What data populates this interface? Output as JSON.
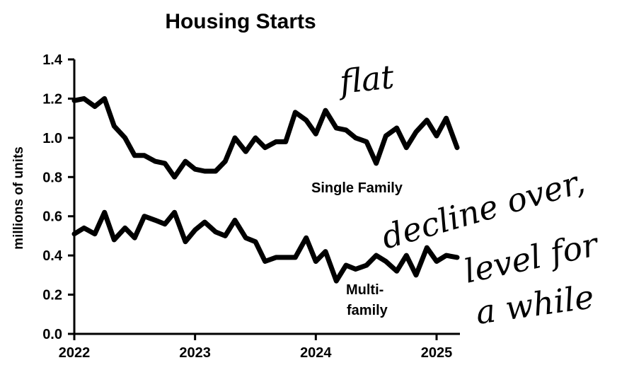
{
  "chart_data": {
    "type": "line",
    "title": "Housing Starts",
    "ylabel": "millions of units",
    "xlabel": "",
    "xlim": [
      2022,
      2025.17
    ],
    "ylim": [
      0,
      1.4
    ],
    "yticks": [
      "0.0",
      "0.2",
      "0.4",
      "0.6",
      "0.8",
      "1.0",
      "1.2",
      "1.4"
    ],
    "xticks": [
      "2022",
      "2023",
      "2024",
      "2025"
    ],
    "grid": false,
    "series": [
      {
        "name": "Single Family",
        "x": [
          2022.0,
          2022.08,
          2022.17,
          2022.25,
          2022.33,
          2022.42,
          2022.5,
          2022.58,
          2022.67,
          2022.75,
          2022.83,
          2022.92,
          2023.0,
          2023.08,
          2023.17,
          2023.25,
          2023.33,
          2023.42,
          2023.5,
          2023.58,
          2023.67,
          2023.75,
          2023.83,
          2023.92,
          2024.0,
          2024.08,
          2024.17,
          2024.25,
          2024.33,
          2024.42,
          2024.5,
          2024.58,
          2024.67,
          2024.75,
          2024.83,
          2024.92,
          2025.0,
          2025.08,
          2025.17
        ],
        "values": [
          1.19,
          1.2,
          1.16,
          1.2,
          1.06,
          1.0,
          0.91,
          0.91,
          0.88,
          0.87,
          0.8,
          0.88,
          0.84,
          0.83,
          0.83,
          0.88,
          1.0,
          0.93,
          1.0,
          0.95,
          0.98,
          0.98,
          1.13,
          1.09,
          1.02,
          1.14,
          1.05,
          1.04,
          1.0,
          0.98,
          0.87,
          1.01,
          1.05,
          0.95,
          1.03,
          1.09,
          1.01,
          1.1,
          0.95
        ]
      },
      {
        "name": "Multi-family",
        "x": [
          2022.0,
          2022.08,
          2022.17,
          2022.25,
          2022.33,
          2022.42,
          2022.5,
          2022.58,
          2022.67,
          2022.75,
          2022.83,
          2022.92,
          2023.0,
          2023.08,
          2023.17,
          2023.25,
          2023.33,
          2023.42,
          2023.5,
          2023.58,
          2023.67,
          2023.75,
          2023.83,
          2023.92,
          2024.0,
          2024.08,
          2024.17,
          2024.25,
          2024.33,
          2024.42,
          2024.5,
          2024.58,
          2024.67,
          2024.75,
          2024.83,
          2024.92,
          2025.0,
          2025.08,
          2025.17
        ],
        "values": [
          0.51,
          0.54,
          0.51,
          0.62,
          0.48,
          0.54,
          0.49,
          0.6,
          0.58,
          0.56,
          0.62,
          0.47,
          0.53,
          0.57,
          0.52,
          0.5,
          0.58,
          0.49,
          0.47,
          0.37,
          0.39,
          0.39,
          0.39,
          0.49,
          0.37,
          0.42,
          0.27,
          0.35,
          0.33,
          0.35,
          0.4,
          0.37,
          0.32,
          0.4,
          0.3,
          0.44,
          0.37,
          0.4,
          0.39
        ]
      }
    ],
    "series_labels": [
      {
        "line1": "Single Family",
        "line2": ""
      },
      {
        "line1": "Multi-",
        "line2": "family"
      }
    ],
    "annotations": {
      "flat": "flat",
      "decline_1": "decline over,",
      "decline_2": "level for",
      "decline_3": "a while"
    }
  }
}
